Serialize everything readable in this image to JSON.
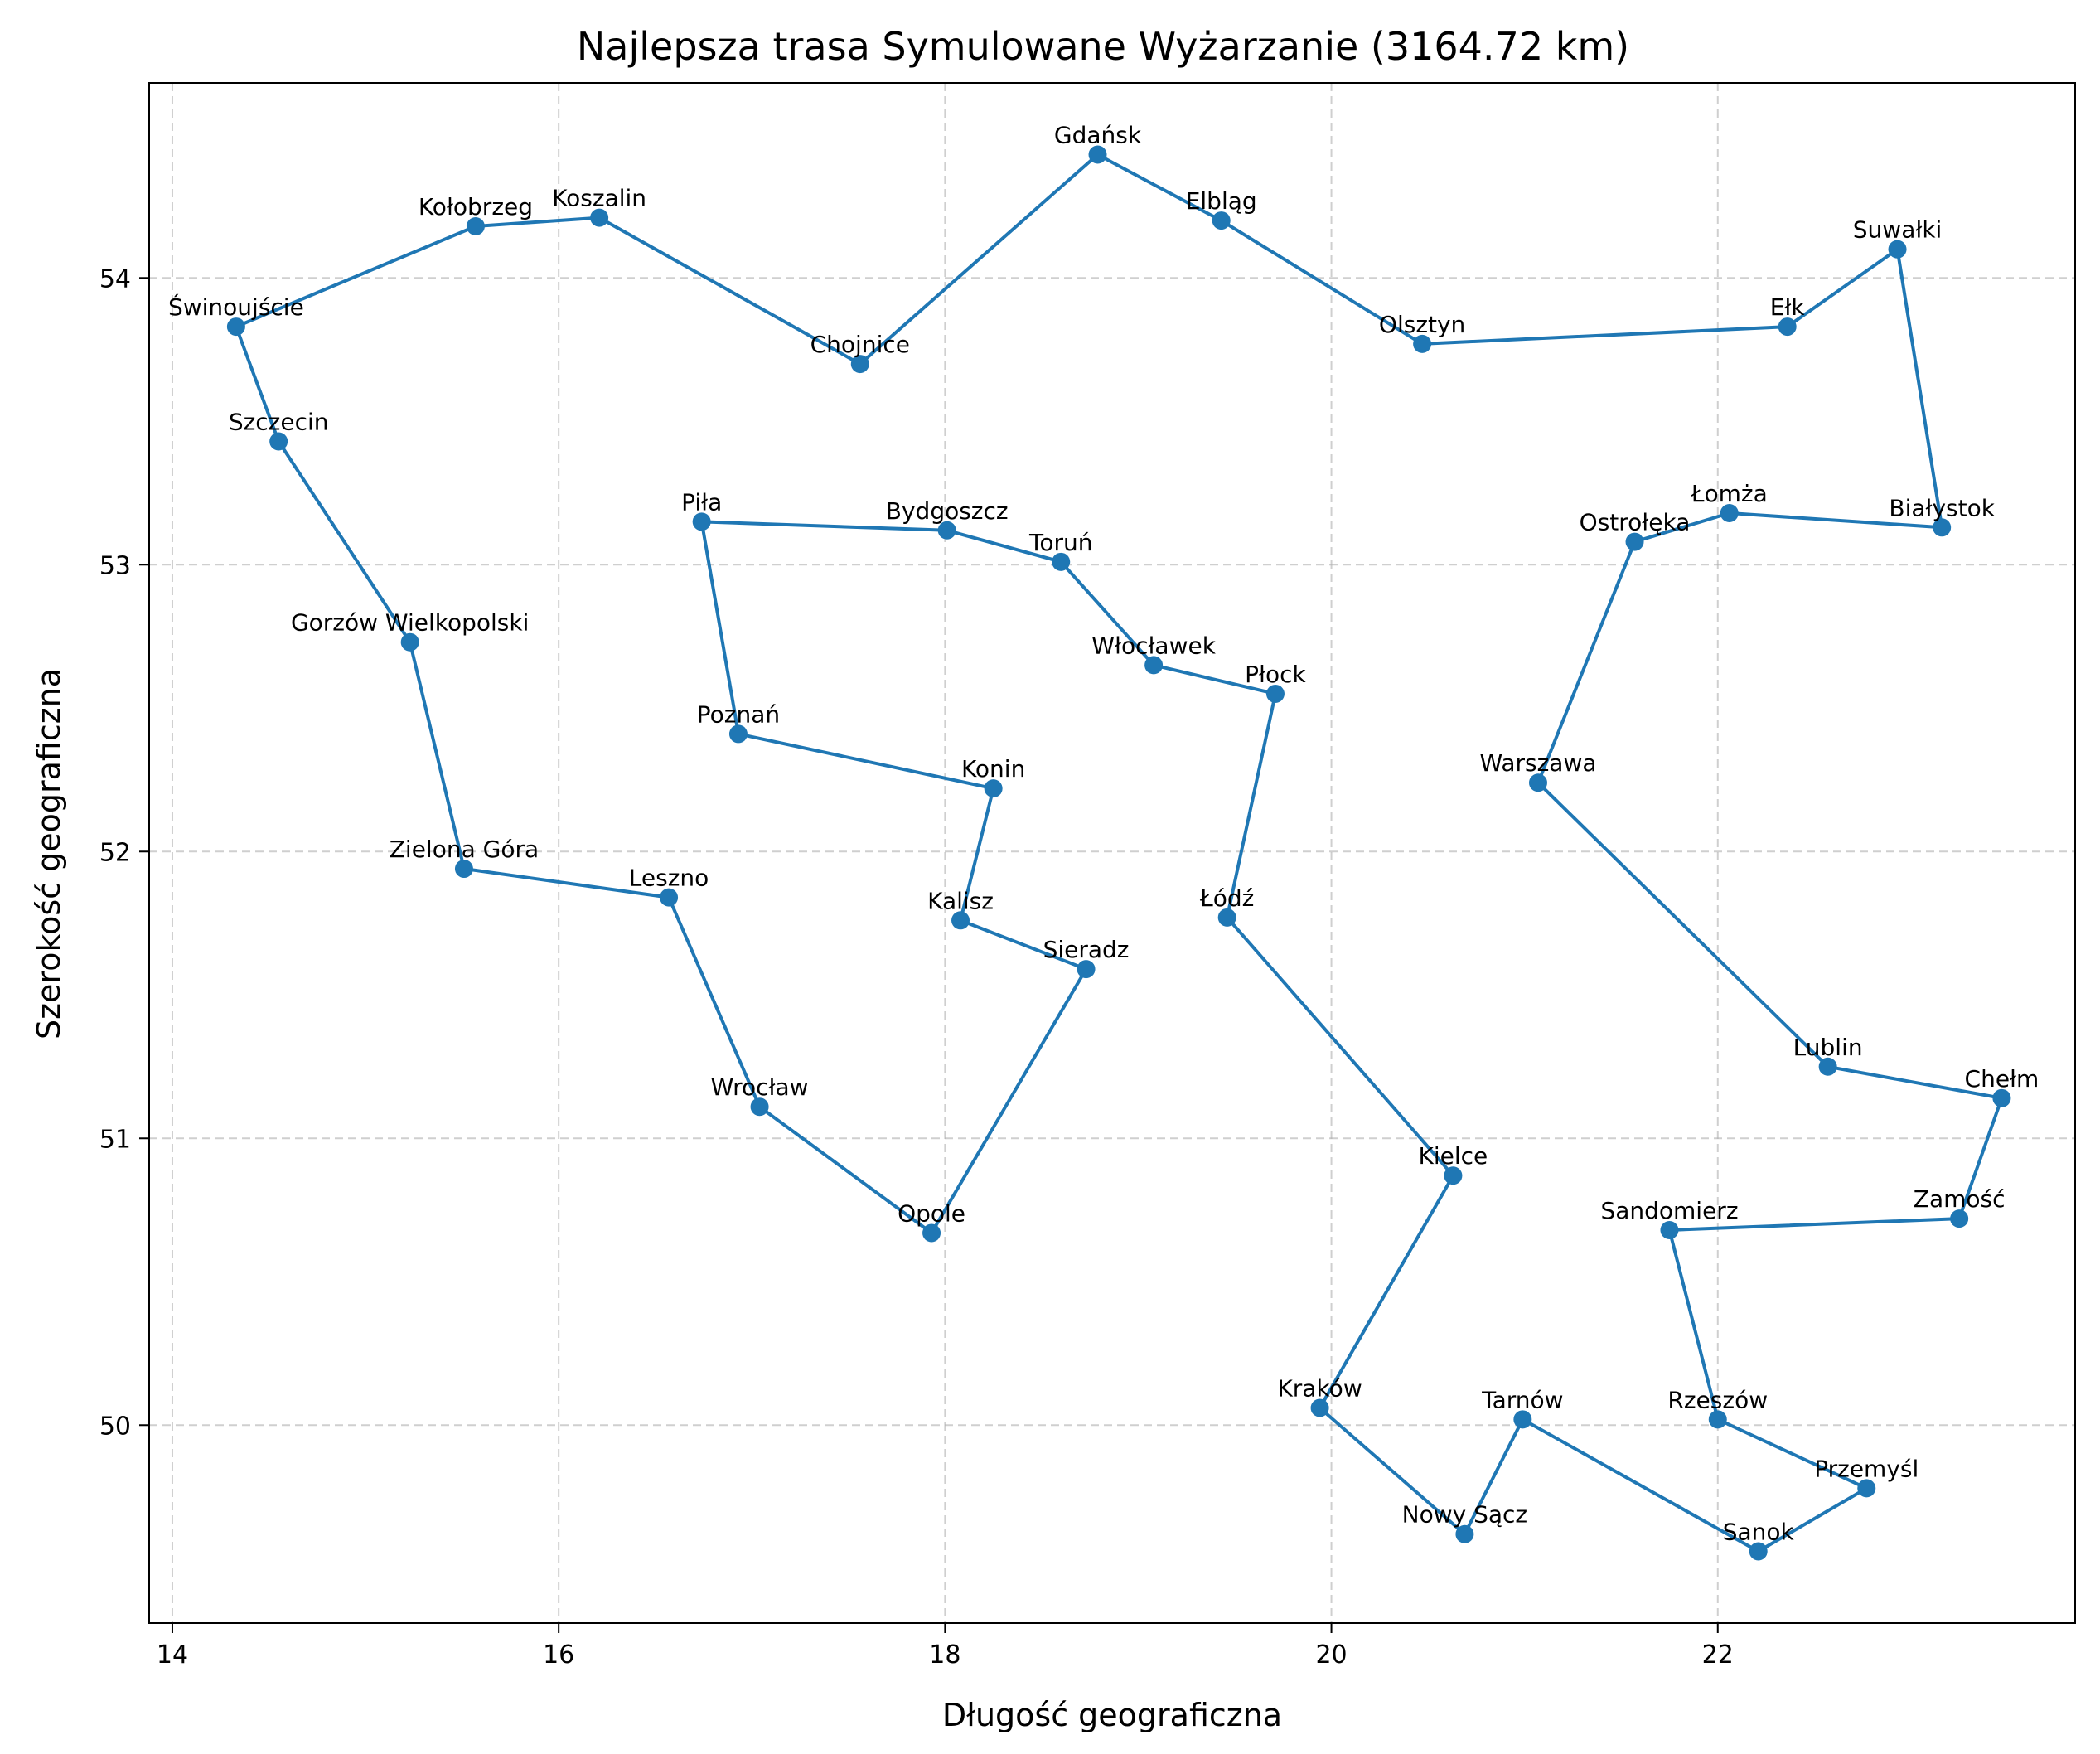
{
  "chart_data": {
    "type": "line",
    "title": "Najlepsza trasa Symulowane Wyżarzanie (3164.72 km)",
    "xlabel": "Długość geograficzna",
    "ylabel": "Szerokość geograficzna",
    "xlim": [
      13.88,
      23.85
    ],
    "ylim": [
      49.31,
      54.68
    ],
    "x_ticks": [
      14,
      16,
      18,
      20,
      22
    ],
    "y_ticks": [
      50,
      51,
      52,
      53,
      54
    ],
    "x_tick_labels": [
      "14",
      "16",
      "18",
      "20",
      "22"
    ],
    "y_tick_labels": [
      "50",
      "51",
      "52",
      "53",
      "54"
    ],
    "grid": true,
    "line_color": "#1f77b4",
    "route": [
      {
        "name": "Świnoujście",
        "x": 14.33,
        "y": 53.83
      },
      {
        "name": "Kołobrzeg",
        "x": 15.57,
        "y": 54.18
      },
      {
        "name": "Koszalin",
        "x": 16.21,
        "y": 54.21
      },
      {
        "name": "Chojnice",
        "x": 17.56,
        "y": 53.7
      },
      {
        "name": "Gdańsk",
        "x": 18.79,
        "y": 54.43
      },
      {
        "name": "Elbląg",
        "x": 19.43,
        "y": 54.2
      },
      {
        "name": "Olsztyn",
        "x": 20.47,
        "y": 53.77
      },
      {
        "name": "Ełk",
        "x": 22.36,
        "y": 53.83
      },
      {
        "name": "Suwałki",
        "x": 22.93,
        "y": 54.1
      },
      {
        "name": "Białystok",
        "x": 23.16,
        "y": 53.13
      },
      {
        "name": "Łomża",
        "x": 22.06,
        "y": 53.18
      },
      {
        "name": "Ostrołęka",
        "x": 21.57,
        "y": 53.08
      },
      {
        "name": "Warszawa",
        "x": 21.07,
        "y": 52.24
      },
      {
        "name": "Lublin",
        "x": 22.57,
        "y": 51.25
      },
      {
        "name": "Chełm",
        "x": 23.47,
        "y": 51.14
      },
      {
        "name": "Zamość",
        "x": 23.25,
        "y": 50.72
      },
      {
        "name": "Sandomierz",
        "x": 21.75,
        "y": 50.68
      },
      {
        "name": "Rzeszów",
        "x": 22.0,
        "y": 50.02
      },
      {
        "name": "Przemyśl",
        "x": 22.77,
        "y": 49.78
      },
      {
        "name": "Sanok",
        "x": 22.21,
        "y": 49.56
      },
      {
        "name": "Tarnów",
        "x": 20.99,
        "y": 50.02
      },
      {
        "name": "Nowy Sącz",
        "x": 20.69,
        "y": 49.62
      },
      {
        "name": "Kraków",
        "x": 19.94,
        "y": 50.06
      },
      {
        "name": "Kielce",
        "x": 20.63,
        "y": 50.87
      },
      {
        "name": "Łódź",
        "x": 19.46,
        "y": 51.77
      },
      {
        "name": "Płock",
        "x": 19.71,
        "y": 52.55
      },
      {
        "name": "Włocławek",
        "x": 19.08,
        "y": 52.65
      },
      {
        "name": "Toruń",
        "x": 18.6,
        "y": 53.01
      },
      {
        "name": "Bydgoszcz",
        "x": 18.01,
        "y": 53.12
      },
      {
        "name": "Piła",
        "x": 16.74,
        "y": 53.15
      },
      {
        "name": "Poznań",
        "x": 16.93,
        "y": 52.41
      },
      {
        "name": "Konin",
        "x": 18.25,
        "y": 52.22
      },
      {
        "name": "Kalisz",
        "x": 18.08,
        "y": 51.76
      },
      {
        "name": "Sieradz",
        "x": 18.73,
        "y": 51.59
      },
      {
        "name": "Opole",
        "x": 17.93,
        "y": 50.67
      },
      {
        "name": "Wrocław",
        "x": 17.04,
        "y": 51.11
      },
      {
        "name": "Leszno",
        "x": 16.57,
        "y": 51.84
      },
      {
        "name": "Zielona Góra",
        "x": 15.51,
        "y": 51.94
      },
      {
        "name": "Gorzów Wielkopolski",
        "x": 15.23,
        "y": 52.73
      },
      {
        "name": "Szczecin",
        "x": 14.55,
        "y": 53.43
      }
    ]
  }
}
